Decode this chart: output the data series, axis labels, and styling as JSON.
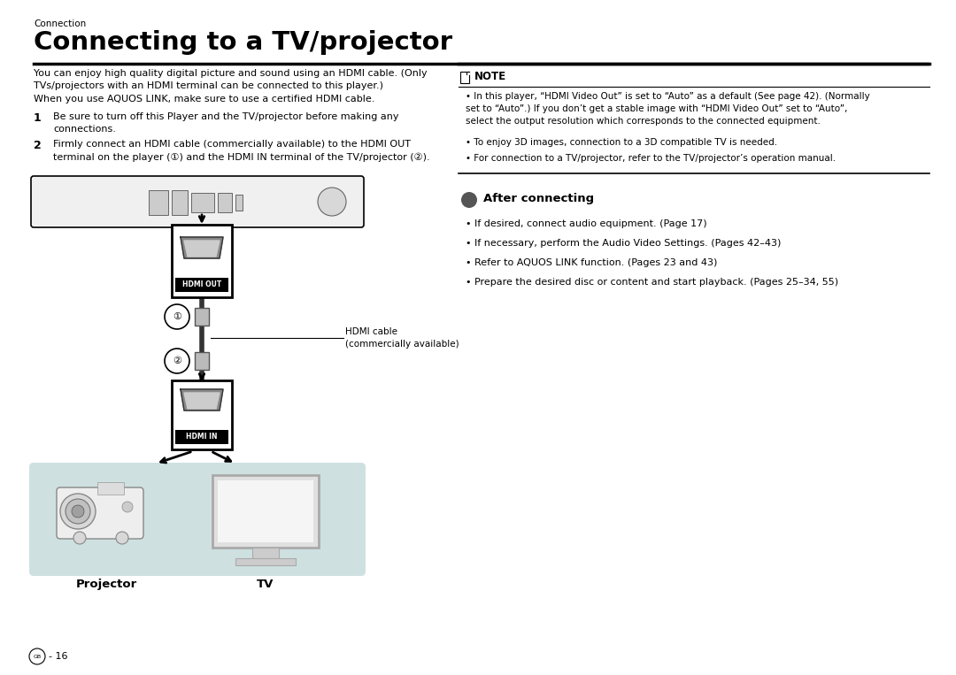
{
  "bg_color": "#ffffff",
  "page_width": 10.8,
  "page_height": 7.63,
  "section_label": "Connection",
  "title": "Connecting to a TV/projector",
  "intro_text": "You can enjoy high quality digital picture and sound using an HDMI cable. (Only\nTVs/projectors with an HDMI terminal can be connected to this player.)\nWhen you use AQUOS LINK, make sure to use a certified HDMI cable.",
  "step1_num": "1",
  "step1_text": "Be sure to turn off this Player and the TV/projector before making any\nconnections.",
  "step2_num": "2",
  "step2_text": "Firmly connect an HDMI cable (commercially available) to the HDMI OUT\nterminal on the player (①) and the HDMI IN terminal of the TV/projector (②).",
  "note_header": "NOTE",
  "note_bullet1": "In this player, “HDMI Video Out” is set to “Auto” as a default (See page 42). (Normally\nset to “Auto”.) If you don’t get a stable image with “HDMI Video Out” set to “Auto”,\nselect the output resolution which corresponds to the connected equipment.",
  "note_bullet2": "To enjoy 3D images, connection to a 3D compatible TV is needed.",
  "note_bullet3": "For connection to a TV/projector, refer to the TV/projector’s operation manual.",
  "after_header": "After connecting",
  "after_bullet1": "If desired, connect audio equipment. (Page 17)",
  "after_bullet2": "If necessary, perform the Audio Video Settings. (Pages 42–43)",
  "after_bullet3": "Refer to AQUOS LINK function. (Pages 23 and 43)",
  "after_bullet4": "Prepare the desired disc or content and start playback. (Pages 25–34, 55)",
  "hdmi_cable_label": "HDMI cable\n(commercially available)",
  "hdmi_out_label": "HDMI OUT",
  "hdmi_in_label": "HDMI IN",
  "projector_label": "Projector",
  "tv_label": "TV",
  "page_num": "® - 16",
  "light_blue_bg": "#cfe0e0",
  "note_line_color": "#000000",
  "connector_fill": "#ffffff",
  "connector_border": "#000000",
  "hdmi_label_bg": "#000000",
  "hdmi_label_fg": "#ffffff"
}
